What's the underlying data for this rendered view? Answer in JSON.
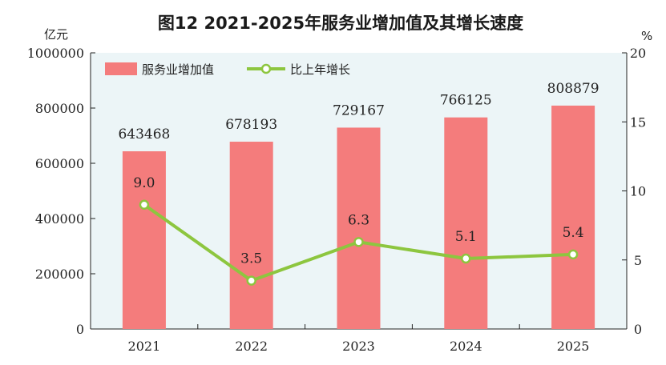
{
  "chart_data": {
    "type": "bar+line",
    "title": "图12   2021-2025年服务业增加值及其增长速度",
    "left_unit": "亿元",
    "right_unit": "%",
    "categories": [
      "2021",
      "2022",
      "2023",
      "2024",
      "2025"
    ],
    "series": [
      {
        "name": "服务业增加值",
        "type": "bar",
        "axis": "left",
        "values": [
          643468,
          678193,
          729167,
          766125,
          808879
        ],
        "labels": [
          "643468",
          "678193",
          "729167",
          "766125",
          "808879"
        ],
        "color": "#f47c7c"
      },
      {
        "name": "比上年增长",
        "type": "line",
        "axis": "right",
        "values": [
          9.0,
          3.5,
          6.3,
          5.1,
          5.4
        ],
        "labels": [
          "9.0",
          "3.5",
          "6.3",
          "5.1",
          "5.4"
        ],
        "color": "#8dc63f"
      }
    ],
    "ylim_left": [
      0,
      1000000
    ],
    "yticks_left": [
      "0",
      "200000",
      "400000",
      "600000",
      "800000",
      "1000000"
    ],
    "ylim_right": [
      0,
      20
    ],
    "yticks_right": [
      "0",
      "5",
      "10",
      "15",
      "20"
    ],
    "plot_background": "#ecf5f7",
    "grid": false,
    "legend_position": "top-left"
  }
}
